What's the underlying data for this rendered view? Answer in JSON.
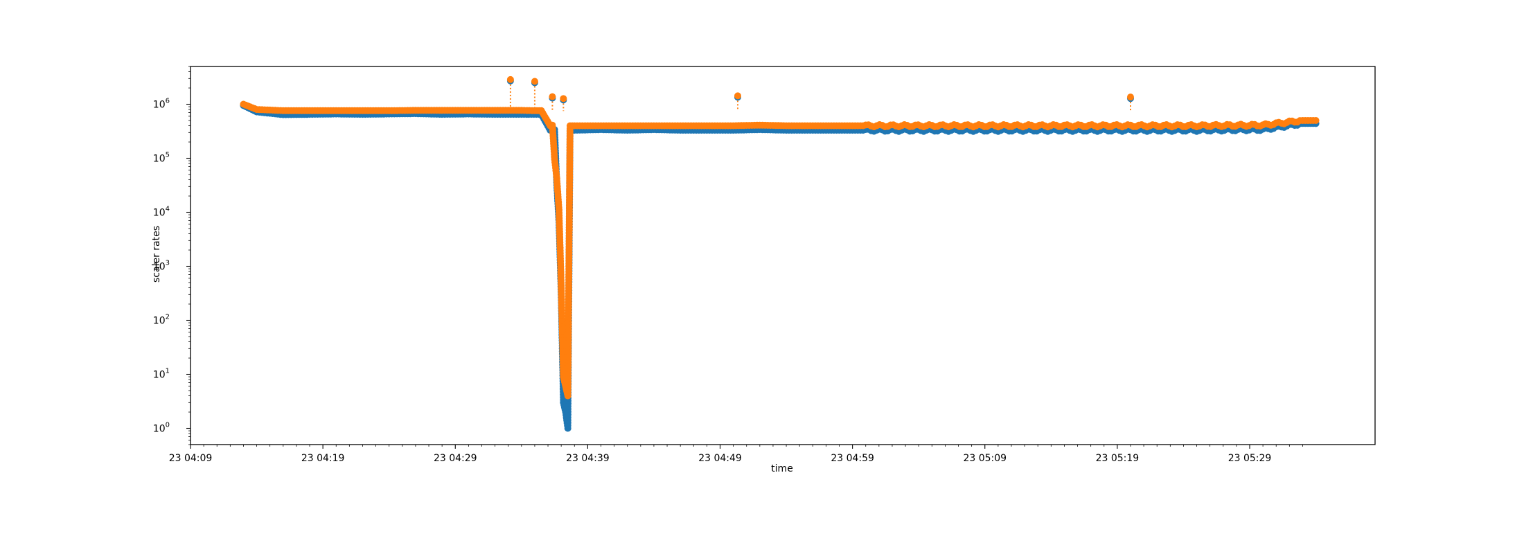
{
  "chart_data": {
    "type": "line",
    "marker": "circle",
    "line_style": "dotted",
    "xlabel": "time",
    "ylabel": "scaler rates",
    "y_scale": "log",
    "ylim": [
      0.5,
      5000000
    ],
    "x_ticks": [
      "23 04:09",
      "23 04:19",
      "23 04:29",
      "23 04:39",
      "23 04:49",
      "23 04:59",
      "23 05:09",
      "23 05:19",
      "23 05:29"
    ],
    "y_ticks": [
      "10^0",
      "10^1",
      "10^2",
      "10^3",
      "10^4",
      "10^5",
      "10^6"
    ],
    "grid": false,
    "legend": "none",
    "series": [
      {
        "color": "#1f77b4",
        "x": [
          "04:13",
          "04:14",
          "04:16",
          "04:18",
          "04:20",
          "04:22",
          "04:24",
          "04:26",
          "04:28",
          "04:30",
          "04:32",
          "04:33",
          "04:34",
          "04:35:30",
          "04:36:10",
          "04:36:20",
          "04:36:30",
          "04:36:40",
          "04:36:50",
          "04:37:00",
          "04:37:10",
          "04:37:20",
          "04:37:30",
          "04:37:40",
          "04:38",
          "04:40",
          "04:42",
          "04:44",
          "04:46",
          "04:48",
          "04:50",
          "04:52",
          "04:54",
          "04:56",
          "04:58",
          "05:00",
          "05:05",
          "05:10",
          "05:15",
          "05:20",
          "05:25",
          "05:30",
          "05:33",
          "05:34"
        ],
        "y": [
          950000,
          720000,
          640000,
          650000,
          660000,
          650000,
          660000,
          670000,
          650000,
          660000,
          650000,
          650000,
          650000,
          650000,
          330000,
          330000,
          340000,
          32000,
          6500,
          300,
          3,
          2,
          1,
          330000,
          330000,
          340000,
          330000,
          340000,
          330000,
          330000,
          330000,
          340000,
          330000,
          330000,
          330000,
          330000,
          330000,
          330000,
          330000,
          330000,
          330000,
          340000,
          440000,
          440000
        ]
      },
      {
        "color": "#ff7f0e",
        "x": [
          "04:13",
          "04:14",
          "04:16",
          "04:18",
          "04:20",
          "04:22",
          "04:24",
          "04:26",
          "04:28",
          "04:30",
          "04:32",
          "04:33",
          "04:34",
          "04:35:00",
          "04:35:30",
          "04:36:10",
          "04:36:20",
          "04:36:30",
          "04:36:40",
          "04:36:50",
          "04:37:00",
          "04:37:10",
          "04:37:20",
          "04:37:30",
          "04:37:40",
          "04:38",
          "04:40",
          "04:42",
          "04:44",
          "04:46",
          "04:48",
          "04:50",
          "04:52",
          "04:54",
          "04:56",
          "04:58",
          "05:00",
          "05:05",
          "05:10",
          "05:15",
          "05:20",
          "05:25",
          "05:30",
          "05:33",
          "05:34"
        ],
        "y": [
          1000000,
          800000,
          760000,
          760000,
          760000,
          760000,
          760000,
          770000,
          770000,
          770000,
          770000,
          770000,
          770000,
          760000,
          760000,
          400000,
          410000,
          95000,
          42000,
          11000,
          440,
          9,
          6,
          4,
          400000,
          400000,
          400000,
          400000,
          400000,
          400000,
          400000,
          400000,
          410000,
          400000,
          400000,
          400000,
          400000,
          400000,
          400000,
          400000,
          400000,
          400000,
          410000,
          500000,
          500000
        ],
        "spikes": [
          {
            "x": "04:33:10",
            "y": 2700000
          },
          {
            "x": "04:35:00",
            "y": 2500000
          },
          {
            "x": "04:36:20",
            "y": 1300000
          },
          {
            "x": "04:37:10",
            "y": 1200000
          },
          {
            "x": "04:50:20",
            "y": 1350000
          },
          {
            "x": "05:20:00",
            "y": 1280000
          }
        ]
      }
    ]
  }
}
